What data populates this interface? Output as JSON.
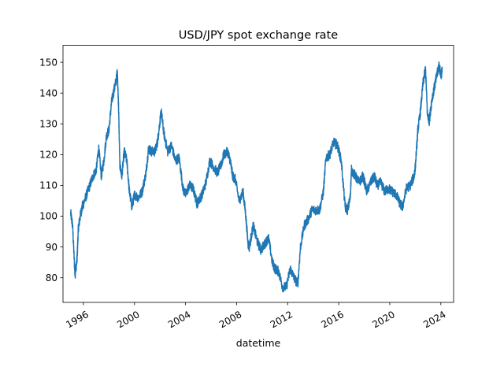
{
  "chart_data": {
    "type": "line",
    "title": "USD/JPY spot exchange rate",
    "xlabel": "datetime",
    "ylabel": "",
    "xlim": [
      1994.4,
      2025.0
    ],
    "ylim": [
      72,
      155.5
    ],
    "grid": false,
    "legend": "none",
    "x_ticks": [
      1996,
      2000,
      2004,
      2008,
      2012,
      2016,
      2020,
      2024
    ],
    "x_tick_labels": [
      "1996",
      "2000",
      "2004",
      "2008",
      "2012",
      "2016",
      "2020",
      "2024"
    ],
    "y_ticks": [
      80,
      90,
      100,
      110,
      120,
      130,
      140,
      150
    ],
    "y_tick_labels": [
      "80",
      "90",
      "100",
      "110",
      "120",
      "130",
      "140",
      "150"
    ],
    "series": [
      {
        "color": "#1f77b4",
        "x": [
          1995.0,
          1995.15,
          1995.3,
          1995.35,
          1995.5,
          1995.6,
          1995.75,
          1995.9,
          1996.0,
          1996.25,
          1996.5,
          1996.75,
          1997.0,
          1997.2,
          1997.4,
          1997.6,
          1997.8,
          1998.0,
          1998.2,
          1998.4,
          1998.6,
          1998.65,
          1998.75,
          1998.85,
          1999.0,
          1999.2,
          1999.4,
          1999.6,
          1999.8,
          2000.0,
          2000.3,
          2000.6,
          2000.9,
          2001.1,
          2001.3,
          2001.6,
          2001.8,
          2002.0,
          2002.1,
          2002.3,
          2002.6,
          2002.9,
          2003.2,
          2003.5,
          2003.8,
          2004.0,
          2004.3,
          2004.6,
          2004.9,
          2005.0,
          2005.3,
          2005.6,
          2005.9,
          2006.2,
          2006.5,
          2006.8,
          2007.0,
          2007.3,
          2007.5,
          2007.7,
          2007.9,
          2008.2,
          2008.5,
          2008.7,
          2008.9,
          2009.0,
          2009.3,
          2009.6,
          2009.9,
          2010.2,
          2010.5,
          2010.8,
          2011.0,
          2011.3,
          2011.6,
          2011.9,
          2012.2,
          2012.5,
          2012.8,
          2013.0,
          2013.3,
          2013.6,
          2013.9,
          2014.2,
          2014.5,
          2014.8,
          2015.0,
          2015.3,
          2015.6,
          2015.9,
          2016.2,
          2016.5,
          2016.7,
          2016.9,
          2017.0,
          2017.3,
          2017.6,
          2017.9,
          2018.2,
          2018.5,
          2018.8,
          2019.0,
          2019.3,
          2019.6,
          2019.9,
          2020.2,
          2020.5,
          2020.8,
          2021.0,
          2021.3,
          2021.6,
          2021.9,
          2022.0,
          2022.2,
          2022.4,
          2022.6,
          2022.8,
          2022.95,
          2023.1,
          2023.3,
          2023.5,
          2023.7,
          2023.85,
          2024.0,
          2024.1
        ],
        "y": [
          101,
          97,
          84,
          81,
          86,
          96,
          100,
          103,
          104,
          107,
          110,
          113,
          115,
          122,
          113,
          118,
          126,
          128,
          137,
          141,
          145,
          147,
          136,
          117,
          113,
          121,
          118,
          108,
          103,
          107,
          106,
          108,
          114,
          122,
          121,
          121,
          124,
          131,
          134,
          127,
          121,
          123,
          118,
          119,
          109,
          107,
          110,
          109,
          104,
          105,
          107,
          111,
          118,
          116,
          114,
          117,
          120,
          121,
          118,
          113,
          112,
          105,
          108,
          101,
          91,
          90,
          97,
          92,
          89,
          91,
          93,
          85,
          83,
          82,
          77,
          77,
          83,
          80,
          78,
          90,
          97,
          99,
          102,
          102,
          102,
          108,
          119,
          120,
          124,
          123,
          118,
          103,
          102,
          106,
          115,
          113,
          111,
          113,
          108,
          111,
          113,
          110,
          111,
          108,
          109,
          108,
          107,
          104,
          103,
          109,
          110,
          113,
          116,
          128,
          134,
          143,
          148,
          133,
          131,
          138,
          142,
          146,
          149,
          146,
          147
        ]
      }
    ]
  }
}
